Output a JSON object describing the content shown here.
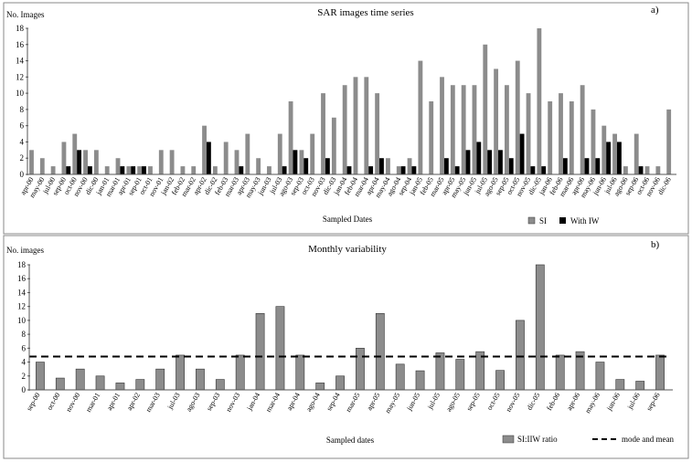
{
  "chart_data": [
    {
      "type": "bar",
      "panel": "a)",
      "title": "SAR images time series",
      "ylabel": "No. Images",
      "xlabel": "Sampled Dates",
      "ylim": [
        0,
        18
      ],
      "yticks": [
        0,
        2,
        4,
        6,
        8,
        10,
        12,
        14,
        16,
        18
      ],
      "grid": false,
      "legend_position": "bottom-right",
      "categories": [
        "apr-00",
        "may-00",
        "jul-00",
        "sep-00",
        "oct-00",
        "nov-00",
        "dic-00",
        "jan-01",
        "mar-01",
        "apr-01",
        "sep-01",
        "oct-01",
        "nov-01",
        "jan-02",
        "feb-02",
        "mar-02",
        "apr-02",
        "dic-02",
        "feb-03",
        "mar-03",
        "apr-03",
        "may-03",
        "jun-03",
        "jul-03",
        "ago-03",
        "sep-03",
        "oct-03",
        "nov-03",
        "dic-03",
        "jan-04",
        "feb-04",
        "mar-04",
        "apr-04",
        "may-04",
        "ago-04",
        "sep-04",
        "jan-05",
        "feb-05",
        "mar-05",
        "apr-05",
        "may-05",
        "jun-05",
        "jul-05",
        "ago-05",
        "sep-05",
        "oct-05",
        "nov-05",
        "dic-05",
        "jan-06",
        "feb-06",
        "mar-06",
        "apr-06",
        "may-06",
        "jun-06",
        "jul-06",
        "ago-06",
        "sep-06",
        "oct-06",
        "nov-06",
        "dic-06"
      ],
      "series": [
        {
          "name": "SI",
          "color": "#8c8c8c",
          "values": [
            3,
            2,
            1,
            4,
            5,
            3,
            3,
            1,
            2,
            1,
            1,
            1,
            3,
            3,
            1,
            1,
            6,
            1,
            4,
            3,
            5,
            2,
            1,
            5,
            9,
            3,
            5,
            10,
            7,
            11,
            12,
            12,
            10,
            2,
            1,
            2,
            14,
            9,
            12,
            11,
            11,
            11,
            16,
            13,
            11,
            14,
            10,
            18,
            9,
            10,
            9,
            11,
            8,
            6,
            5,
            1,
            5,
            1,
            1,
            8
          ]
        },
        {
          "name": "With IW",
          "color": "#000000",
          "values": [
            0,
            0,
            0,
            1,
            3,
            1,
            0,
            0,
            1,
            1,
            1,
            0,
            0,
            0,
            0,
            0,
            4,
            0,
            0,
            1,
            0,
            0,
            0,
            1,
            3,
            2,
            0,
            2,
            0,
            1,
            0,
            1,
            2,
            0,
            1,
            1,
            0,
            0,
            2,
            1,
            3,
            4,
            3,
            3,
            2,
            5,
            1,
            1,
            0,
            2,
            0,
            2,
            2,
            4,
            4,
            0,
            1,
            0,
            0,
            0
          ]
        }
      ]
    },
    {
      "type": "bar",
      "panel": "b)",
      "title": "Monthly variability",
      "ylabel": "No. images",
      "xlabel": "Sampled dates",
      "ylim": [
        0,
        18
      ],
      "yticks": [
        0,
        2,
        4,
        6,
        8,
        10,
        12,
        14,
        16,
        18
      ],
      "grid": false,
      "legend_position": "bottom-right",
      "categories": [
        "sep-00",
        "oct-00",
        "nov-00",
        "mar-01",
        "apr-01",
        "apr-02",
        "mar-03",
        "jul-03",
        "ago-03",
        "sep-03",
        "nov-03",
        "jan-04",
        "mar-04",
        "apr-04",
        "ago-04",
        "sep-04",
        "mar-05",
        "apr-05",
        "may-05",
        "jun-05",
        "jul-05",
        "ago-05",
        "sep-05",
        "oct-05",
        "nov-05",
        "dic-05",
        "feb-06",
        "apr-06",
        "may-06",
        "jun-06",
        "jul-06",
        "sep-06"
      ],
      "series": [
        {
          "name": "SI:IIW ratio",
          "color": "#8c8c8c",
          "values": [
            4,
            1.7,
            3,
            2,
            1,
            1.5,
            3,
            5,
            3,
            1.5,
            5,
            11,
            12,
            5,
            1,
            2,
            6,
            11,
            3.7,
            2.75,
            5.33,
            4.4,
            5.5,
            2.8,
            10,
            18,
            5,
            5.5,
            4,
            1.5,
            1.25,
            5
          ]
        }
      ],
      "reference_line": {
        "name": "mode and mean",
        "value": 4.8,
        "style": "dashed"
      }
    }
  ]
}
